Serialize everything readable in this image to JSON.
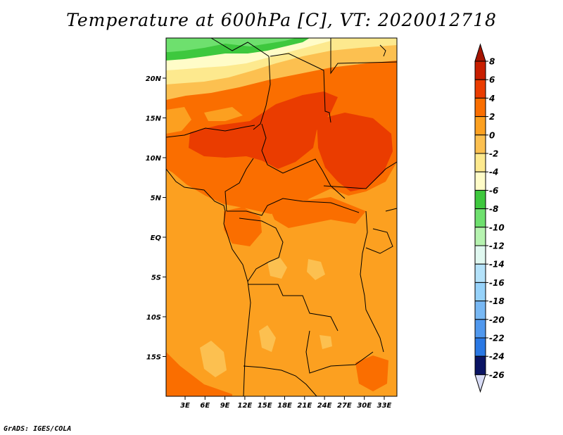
{
  "title": "Temperature at 600hPa [C], VT: 2020012718",
  "footer": "GrADS: IGES/COLA",
  "map": {
    "lat_labels": [
      {
        "label": "20N",
        "lat": 20
      },
      {
        "label": "15N",
        "lat": 15
      },
      {
        "label": "10N",
        "lat": 10
      },
      {
        "label": "5N",
        "lat": 5
      },
      {
        "label": "EQ",
        "lat": 0
      },
      {
        "label": "5S",
        "lat": -5
      },
      {
        "label": "10S",
        "lat": -10
      },
      {
        "label": "15S",
        "lat": -15
      }
    ],
    "lon_labels": [
      {
        "label": "3E",
        "lon": 3
      },
      {
        "label": "6E",
        "lon": 6
      },
      {
        "label": "9E",
        "lon": 9
      },
      {
        "label": "12E",
        "lon": 12
      },
      {
        "label": "15E",
        "lon": 15
      },
      {
        "label": "18E",
        "lon": 18
      },
      {
        "label": "21E",
        "lon": 21
      },
      {
        "label": "24E",
        "lon": 24
      },
      {
        "label": "27E",
        "lon": 27
      },
      {
        "label": "30E",
        "lon": 30
      },
      {
        "label": "33E",
        "lon": 33
      }
    ]
  },
  "colorbar": {
    "levels": [
      {
        "label": "8",
        "color": "#c81e00"
      },
      {
        "label": "6",
        "color": "#ea3c00"
      },
      {
        "label": "4",
        "color": "#fa6e00"
      },
      {
        "label": "2",
        "color": "#fca020"
      },
      {
        "label": "0",
        "color": "#fcc050"
      },
      {
        "label": "-2",
        "color": "#fde98e"
      },
      {
        "label": "-4",
        "color": "#fffcc8"
      },
      {
        "label": "-6",
        "color": "#3ec83e"
      },
      {
        "label": "-8",
        "color": "#6ee06e"
      },
      {
        "label": "-10",
        "color": "#b6f3b0"
      },
      {
        "label": "-12",
        "color": "#e0f8f0"
      },
      {
        "label": "-14",
        "color": "#b4e2fa"
      },
      {
        "label": "-16",
        "color": "#96d2fa"
      },
      {
        "label": "-18",
        "color": "#78b8f4"
      },
      {
        "label": "-20",
        "color": "#5098ee"
      },
      {
        "label": "-22",
        "color": "#2a78e4"
      },
      {
        "label": "-24",
        "color": "#1a5ad6"
      },
      {
        "label": "-26",
        "color": "#0a3cb4"
      }
    ],
    "top_color": "#a51400",
    "bottom_color": "#0a1464",
    "bottom_arrow_color": "#d8dcf6"
  }
}
